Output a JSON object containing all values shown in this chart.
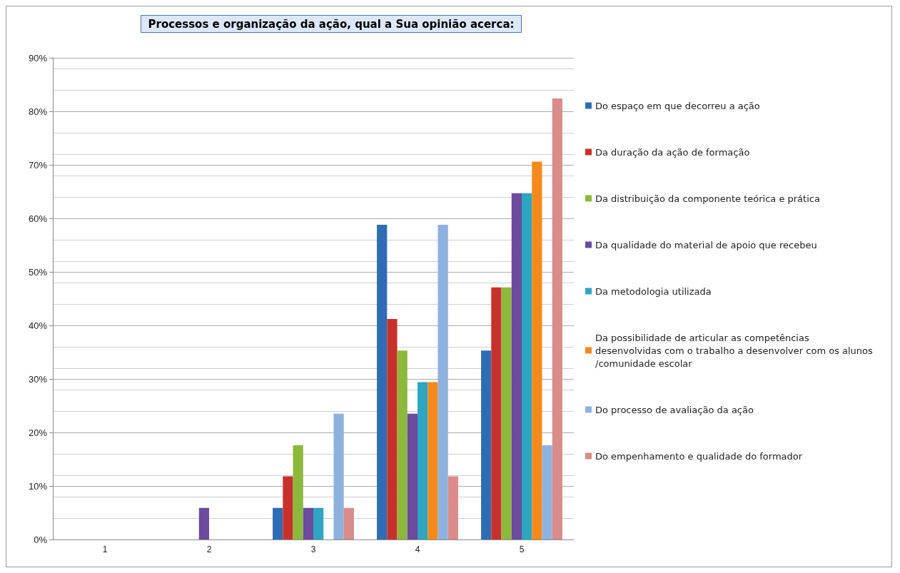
{
  "chart_data": {
    "type": "bar",
    "title": "Processos e organização da ação, qual a Sua opinião acerca:",
    "categories": [
      "1",
      "2",
      "3",
      "4",
      "5"
    ],
    "series": [
      {
        "name": "Do espaço em que decorreu a ação",
        "color": "#2e6db4",
        "values": [
          0,
          0,
          5.9,
          58.8,
          35.3
        ]
      },
      {
        "name": "Da duração da ação de formação",
        "color": "#c8312b",
        "values": [
          0,
          0,
          11.8,
          41.2,
          47.1
        ]
      },
      {
        "name": "Da distribuição da componente teórica e prática",
        "color": "#8cb83c",
        "values": [
          0,
          0,
          17.6,
          35.3,
          47.1
        ]
      },
      {
        "name": "Da qualidade do material de apoio que recebeu",
        "color": "#6b4b9e",
        "values": [
          0,
          5.9,
          5.9,
          23.5,
          64.7
        ]
      },
      {
        "name": "Da metodologia utilizada",
        "color": "#2ea6c1",
        "values": [
          0,
          0,
          5.9,
          29.4,
          64.7
        ]
      },
      {
        "name": "Da possibilidade de articular as competências desenvolvidas com o trabalho a desenvolver com os alunos/comunidade escolar",
        "color": "#f58a1c",
        "values": [
          0,
          0,
          0,
          29.4,
          70.6
        ]
      },
      {
        "name": "Do processo de avaliação da ação",
        "color": "#8fb1de",
        "values": [
          0,
          0,
          23.5,
          58.8,
          17.6
        ]
      },
      {
        "name": "Do empenhamento e qualidade do formador",
        "color": "#d98c8a",
        "values": [
          0,
          0,
          5.9,
          11.8,
          82.4
        ]
      }
    ],
    "ylim": [
      0,
      90
    ],
    "yticks": [
      {
        "value": 0,
        "label": "0%"
      },
      {
        "value": 10,
        "label": "10%"
      },
      {
        "value": 20,
        "label": "20%"
      },
      {
        "value": 30,
        "label": "30%"
      },
      {
        "value": 40,
        "label": "40%"
      },
      {
        "value": 50,
        "label": "50%"
      },
      {
        "value": 60,
        "label": "60%"
      },
      {
        "value": 70,
        "label": "70%"
      },
      {
        "value": 80,
        "label": "80%"
      },
      {
        "value": 90,
        "label": "90%"
      }
    ],
    "grid": true,
    "legend": "right"
  }
}
